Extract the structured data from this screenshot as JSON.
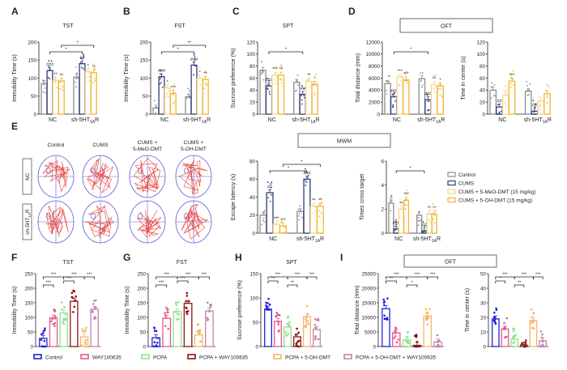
{
  "panel_labels": [
    "A",
    "B",
    "C",
    "D",
    "E",
    "F",
    "G",
    "H",
    "I"
  ],
  "boxes": {
    "oft_top": "OFT",
    "mwm": "MWM",
    "oft_bottom": "OFT"
  },
  "maze": {
    "columns": [
      "Control",
      "CUMS",
      "CUMS +|5-MeO-DMT",
      "CUMS +|5-OH-DMT"
    ],
    "rows": [
      "NC",
      "sh-5HT|1A|R"
    ]
  },
  "legend_top": [
    {
      "label": "Control",
      "color": "#8c8c8c",
      "fill": "#ffffff"
    },
    {
      "label": "CUMS",
      "color": "#2c3e7c",
      "fill": "#ffffff"
    },
    {
      "label": "CUMS + 5-MeO-DMT (15 mg/kg)",
      "color": "#f3d58e",
      "fill": "#ffffff"
    },
    {
      "label": "CUMS + 5-OH-DMT (15 mg/kg)",
      "color": "#f2b530",
      "fill": "#ffffff"
    }
  ],
  "legend_bottom": [
    {
      "label": "Control",
      "color": "#1f1fd8"
    },
    {
      "label": "WAY100635",
      "color": "#e8588a"
    },
    {
      "label": "PCPA",
      "color": "#8fe08f"
    },
    {
      "label": "PCPA + WAY100635",
      "color": "#8b1414"
    },
    {
      "label": "PCPA + 5-OH-DMT",
      "color": "#f5b567"
    },
    {
      "label": "PCPA + 5-OH-DMT + WAY100635",
      "color": "#c184aa"
    }
  ],
  "group_labels": [
    "NC",
    {
      "main": "sh-5HT",
      "sub": "1A",
      "post": "R"
    }
  ],
  "chart_data": [
    {
      "id": "A",
      "type": "bar",
      "title": "TST",
      "ylabel": "Immobility Time (s)",
      "ylim": [
        0,
        200
      ],
      "ticks": [
        0,
        50,
        100,
        150,
        200
      ],
      "layout": "grouped",
      "values": [
        85,
        121,
        94,
        92,
        103,
        140,
        118,
        115
      ],
      "markers": [
        "",
        "###",
        "**",
        "**",
        "",
        "##",
        "*",
        "**"
      ],
      "brackets": [
        {
          "from": 1,
          "to": 5,
          "text": "*",
          "level": 0
        },
        {
          "from": 3,
          "to": 7,
          "text": "*",
          "level": 1
        }
      ]
    },
    {
      "id": "B",
      "type": "bar",
      "title": "FST",
      "ylabel": "Immobility Time (s)",
      "ylim": [
        0,
        200
      ],
      "ticks": [
        0,
        50,
        100,
        150,
        200
      ],
      "layout": "grouped",
      "values": [
        17,
        104,
        73,
        57,
        48,
        136,
        100,
        96
      ],
      "markers": [
        "",
        "###",
        "*",
        "***",
        "",
        "###",
        "*",
        "**"
      ],
      "brackets": [
        {
          "from": 1,
          "to": 5,
          "text": "*",
          "level": 0
        },
        {
          "from": 3,
          "to": 7,
          "text": "**",
          "level": 1
        }
      ]
    },
    {
      "id": "C",
      "type": "bar",
      "title": "SPT",
      "ylabel": "Sucrose preference (%)",
      "ylim": [
        0,
        120
      ],
      "ticks": [
        0,
        20,
        40,
        60,
        80,
        100,
        120
      ],
      "layout": "grouped",
      "values": [
        73,
        47,
        65,
        65,
        53,
        33,
        55,
        50
      ],
      "markers": [
        "",
        "###",
        "***",
        "**",
        "",
        "##",
        "**",
        "*"
      ],
      "brackets": [
        {
          "from": 1,
          "to": 5,
          "text": "*",
          "level": 0
        }
      ]
    },
    {
      "id": "D1",
      "type": "bar",
      "title": "",
      "ylabel": "Total distance (mm)",
      "ylim": [
        0,
        12000
      ],
      "ticks": [
        0,
        2000,
        4000,
        6000,
        8000,
        10000,
        12000
      ],
      "layout": "grouped",
      "values": [
        5100,
        2900,
        6200,
        5700,
        5900,
        2400,
        4900,
        4700
      ],
      "markers": [
        "",
        "###",
        "***",
        "***",
        "",
        "###",
        "**",
        "*"
      ],
      "brackets": [
        {
          "from": 1,
          "to": 5,
          "text": "*",
          "level": 0
        }
      ]
    },
    {
      "id": "D2",
      "type": "bar",
      "title": "",
      "ylabel": "Time in center (s)",
      "ylim": [
        0,
        120
      ],
      "ticks": [
        0,
        20,
        40,
        60,
        80,
        100,
        120
      ],
      "layout": "grouped",
      "values": [
        40,
        12,
        32,
        55,
        38,
        5,
        22,
        34
      ],
      "markers": [
        "",
        "##",
        "",
        "***",
        "",
        "##",
        "",
        ""
      ],
      "brackets": []
    },
    {
      "id": "E1",
      "type": "bar",
      "title": "",
      "ylabel": "Escape latency (s)",
      "ylim": [
        0,
        80
      ],
      "ticks": [
        0,
        20,
        40,
        60,
        80
      ],
      "layout": "grouped",
      "values": [
        20,
        45,
        10,
        8,
        24,
        60,
        30,
        30
      ],
      "markers": [
        "",
        "##",
        "***",
        "***",
        "",
        "###",
        "**",
        "**"
      ],
      "brackets": [
        {
          "from": 1,
          "to": 5,
          "text": "*",
          "level": 0
        },
        {
          "from": 3,
          "to": 7,
          "text": "*",
          "level": 1
        }
      ]
    },
    {
      "id": "E2",
      "type": "bar",
      "title": "",
      "ylabel": "Times cross target",
      "ylim": [
        0,
        6
      ],
      "ticks": [
        0,
        2,
        4,
        6
      ],
      "layout": "grouped",
      "values": [
        2.5,
        0.35,
        2.0,
        2.75,
        1.5,
        0.2,
        1.6,
        1.6
      ],
      "markers": [
        "",
        "###",
        "**",
        "***",
        "",
        "##",
        "**",
        "**"
      ],
      "brackets": [
        {
          "from": 1,
          "to": 5,
          "text": "*",
          "level": 0
        }
      ]
    },
    {
      "id": "F",
      "type": "bar",
      "title": "TST",
      "ylabel": "Immobility Time (s)",
      "ylim": [
        0,
        250
      ],
      "ticks": [
        0,
        50,
        100,
        150,
        200,
        250
      ],
      "layout": "six",
      "values": [
        28,
        98,
        115,
        155,
        33,
        128
      ],
      "markers": [
        "",
        "",
        "",
        "",
        "",
        ""
      ],
      "brackets": [
        {
          "from": 0,
          "to": 1,
          "text": "***",
          "level": 0
        },
        {
          "from": 2,
          "to": 3,
          "text": "***",
          "level": 1
        },
        {
          "from": 0,
          "to": 2,
          "text": "***",
          "level": 2
        },
        {
          "from": 2,
          "to": 4,
          "text": "***",
          "level": 2
        },
        {
          "from": 4,
          "to": 5,
          "text": "***",
          "level": 2
        }
      ]
    },
    {
      "id": "G",
      "type": "bar",
      "title": "FST",
      "ylabel": "Immobility Time (s)",
      "ylim": [
        0,
        250
      ],
      "ticks": [
        0,
        50,
        100,
        150,
        200,
        250
      ],
      "layout": "six",
      "values": [
        30,
        97,
        120,
        148,
        40,
        122
      ],
      "markers": [
        "",
        "",
        "",
        "",
        "",
        ""
      ],
      "brackets": [
        {
          "from": 0,
          "to": 1,
          "text": "***",
          "level": 0
        },
        {
          "from": 2,
          "to": 3,
          "text": "***",
          "level": 1
        },
        {
          "from": 0,
          "to": 2,
          "text": "***",
          "level": 2
        },
        {
          "from": 2,
          "to": 4,
          "text": "***",
          "level": 2
        },
        {
          "from": 4,
          "to": 5,
          "text": "***",
          "level": 2
        }
      ]
    },
    {
      "id": "H",
      "type": "bar",
      "title": "SPT",
      "ylabel": "Sucrose preference (%)",
      "ylim": [
        0,
        150
      ],
      "ticks": [
        0,
        50,
        100,
        150
      ],
      "layout": "six",
      "values": [
        77,
        52,
        40,
        20,
        62,
        35
      ],
      "markers": [
        "",
        "",
        "",
        "",
        "",
        ""
      ],
      "brackets": [
        {
          "from": 0,
          "to": 1,
          "text": "***",
          "level": 1
        },
        {
          "from": 2,
          "to": 3,
          "text": "**",
          "level": 0
        },
        {
          "from": 0,
          "to": 2,
          "text": "***",
          "level": 2
        },
        {
          "from": 2,
          "to": 4,
          "text": "***",
          "level": 2
        },
        {
          "from": 4,
          "to": 5,
          "text": "***",
          "level": 2
        }
      ]
    },
    {
      "id": "I1",
      "type": "bar",
      "title": "",
      "ylabel": "Total distance (mm)",
      "ylim": [
        0,
        25000
      ],
      "ticks": [
        0,
        5000,
        10000,
        15000,
        20000,
        25000
      ],
      "layout": "six",
      "values": [
        13000,
        4700,
        2300,
        400,
        10500,
        1600
      ],
      "markers": [
        "",
        "",
        "",
        "",
        "",
        ""
      ],
      "brackets": [
        {
          "from": 0,
          "to": 1,
          "text": "**",
          "level": 1
        },
        {
          "from": 2,
          "to": 3,
          "text": "*",
          "level": 0
        },
        {
          "from": 0,
          "to": 2,
          "text": "***",
          "level": 2
        },
        {
          "from": 2,
          "to": 4,
          "text": "***",
          "level": 2
        },
        {
          "from": 4,
          "to": 5,
          "text": "***",
          "level": 2
        }
      ]
    },
    {
      "id": "I2",
      "type": "bar",
      "title": "",
      "ylabel": "Time in center (s)",
      "ylim": [
        0,
        50
      ],
      "ticks": [
        0,
        10,
        20,
        30,
        40,
        50
      ],
      "layout": "six",
      "values": [
        19,
        12,
        5,
        1,
        18,
        4
      ],
      "markers": [
        "",
        "",
        "",
        "",
        "",
        ""
      ],
      "brackets": [
        {
          "from": 0,
          "to": 1,
          "text": "*",
          "level": 1
        },
        {
          "from": 2,
          "to": 3,
          "text": "**",
          "level": 0
        },
        {
          "from": 0,
          "to": 2,
          "text": "***",
          "level": 2
        },
        {
          "from": 2,
          "to": 4,
          "text": "***",
          "level": 2
        },
        {
          "from": 4,
          "to": 5,
          "text": "***",
          "level": 2
        }
      ]
    }
  ]
}
